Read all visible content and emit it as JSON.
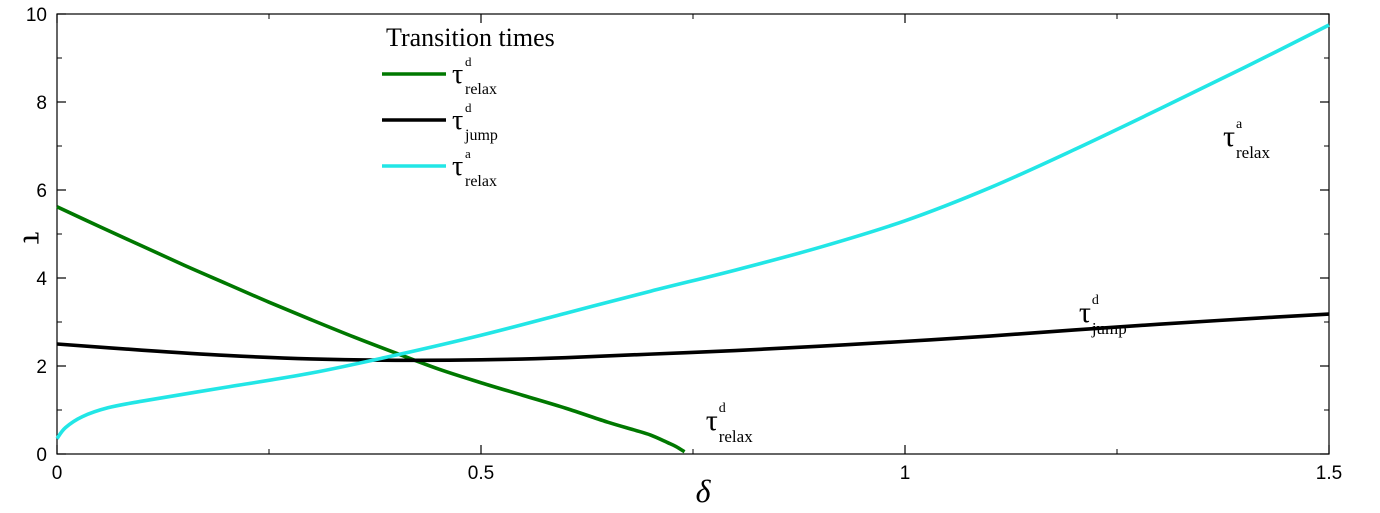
{
  "chart_data": {
    "type": "line",
    "xlabel": "δ",
    "ylabel": "τ",
    "xlim": [
      0,
      1.5
    ],
    "ylim": [
      0,
      10
    ],
    "x_ticks": [
      "0",
      "0.5",
      "1",
      "1.5"
    ],
    "y_ticks": [
      "0",
      "2",
      "4",
      "6",
      "8",
      "10"
    ],
    "legend": {
      "title": "Transition times",
      "placement": "top-left"
    },
    "series": [
      {
        "name_symbol": "τ",
        "name_sup": "d",
        "name_sub": "relax",
        "color": "#007800",
        "x": [
          0,
          0.05,
          0.1,
          0.15,
          0.2,
          0.25,
          0.3,
          0.35,
          0.4,
          0.45,
          0.5,
          0.55,
          0.6,
          0.65,
          0.68,
          0.7,
          0.72,
          0.73,
          0.74
        ],
        "y": [
          5.62,
          5.17,
          4.73,
          4.29,
          3.87,
          3.45,
          3.05,
          2.66,
          2.29,
          1.93,
          1.62,
          1.33,
          1.04,
          0.72,
          0.55,
          0.43,
          0.26,
          0.17,
          0.05
        ]
      },
      {
        "name_symbol": "τ",
        "name_sup": "d",
        "name_sub": "jump",
        "color": "#000000",
        "x": [
          0,
          0.1,
          0.2,
          0.3,
          0.4,
          0.5,
          0.6,
          0.7,
          0.8,
          0.9,
          1.0,
          1.1,
          1.2,
          1.3,
          1.4,
          1.5
        ],
        "y": [
          2.5,
          2.36,
          2.24,
          2.16,
          2.13,
          2.14,
          2.19,
          2.27,
          2.35,
          2.45,
          2.56,
          2.68,
          2.82,
          2.95,
          3.07,
          3.18
        ]
      },
      {
        "name_symbol": "τ",
        "name_sup": "a",
        "name_sub": "relax",
        "color": "#22e6e6",
        "x": [
          0,
          0.01,
          0.03,
          0.06,
          0.1,
          0.2,
          0.3,
          0.4,
          0.5,
          0.6,
          0.7,
          0.8,
          0.9,
          1.0,
          1.1,
          1.2,
          1.3,
          1.4,
          1.5
        ],
        "y": [
          0.35,
          0.6,
          0.85,
          1.05,
          1.2,
          1.52,
          1.84,
          2.25,
          2.7,
          3.2,
          3.7,
          4.18,
          4.7,
          5.3,
          6.05,
          6.92,
          7.84,
          8.78,
          9.75
        ]
      }
    ],
    "annotations": [
      {
        "symbol": "τ",
        "sup": "a",
        "sub": "relax",
        "x": 1.375,
        "y": 7.0
      },
      {
        "symbol": "τ",
        "sup": "d",
        "sub": "jump",
        "x": 1.205,
        "y": 3.0
      },
      {
        "symbol": "τ",
        "sup": "d",
        "sub": "relax",
        "x": 0.765,
        "y": 0.55
      }
    ]
  }
}
